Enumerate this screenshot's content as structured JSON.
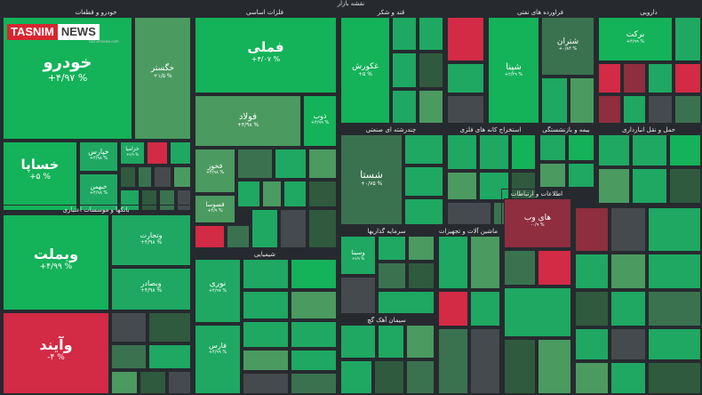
{
  "header": {
    "title": "نقشه بازار"
  },
  "logo": {
    "part1": "TASNIM",
    "part2": "NEWS",
    "sub": "tasnimnews.com"
  },
  "sectors": {
    "auto": "خودرو و قطعات",
    "banks": "بانکها و موسسات اعتباری",
    "metals": "فلزات اساسی",
    "chem": "شیمیایی",
    "sugar": "قند و شکر",
    "agri": "غذایی بجز قند وشکر",
    "multi": "چندرشته ای صنعتی",
    "invest": "سرمایه گذاریها",
    "cement": "سیمان آهک گچ",
    "refinery": "فراورده های نفتی",
    "minerals": "استخراج کانه های فلزی",
    "telecom": "اطلاعات و ارتباطات",
    "insurance": "بیمه و بازنشستگی",
    "pharma": "دارویی",
    "transport": "حمل و نقل انبارداری",
    "ceramic": "کاشی و سرامیک",
    "machinery": "ماشین آلات و تجهیزات"
  },
  "tiles": {
    "khodro": {
      "name": "خودرو",
      "change": "+۴/۹۷ %"
    },
    "khsapa": {
      "name": "خساپا",
      "change": "+۵ %"
    },
    "khgostar": {
      "name": "خگستر",
      "change": "+۱/۵ %"
    },
    "khpars": {
      "name": "خپارس",
      "change": "+۴/۹۸ %"
    },
    "khbahman": {
      "name": "خبهمن",
      "change": "+۴/۹۸ %"
    },
    "khzamia": {
      "name": "خزامیا",
      "change": "+۴/۹ %"
    },
    "vbmellat": {
      "name": "وبملت",
      "change": "+۴/۹۹ %"
    },
    "vayande": {
      "name": "وآیند",
      "change": "-۴ %"
    },
    "vtejarat": {
      "name": "وتجارت",
      "change": "+۴/۹۸ %"
    },
    "vsaderat": {
      "name": "وبصادر",
      "change": "+۴/۹۸ %"
    },
    "fameli": {
      "name": "فملی",
      "change": "+۴/۰۷ %"
    },
    "foolad": {
      "name": "فولاد",
      "change": "+۴/۹۸ %"
    },
    "zob": {
      "name": "ذوب",
      "change": "+۴/۹۹ %"
    },
    "fakhooz": {
      "name": "فخوز",
      "change": "+۴/۹۸ %"
    },
    "fesoosa": {
      "name": "فسوسا",
      "change": "+۴/۹ %"
    },
    "ghkoorosh": {
      "name": "غکورش",
      "change": "+۵ %"
    },
    "shasta": {
      "name": "شستا",
      "change": "+۰/۷۵ %"
    },
    "shepna": {
      "name": "شپنا",
      "change": "+۲/۴۹ %"
    },
    "shatran": {
      "name": "شتران",
      "change": "+۰/۸۴ %"
    },
    "barekat": {
      "name": "برکت",
      "change": "+۴/۹۹ %"
    },
    "nouri": {
      "name": "نوری",
      "change": "+۴/۹۷ %"
    },
    "hayweb": {
      "name": "های وب",
      "change": "-۰/۹ %"
    },
    "vsina": {
      "name": "وسینا",
      "change": "+۴/۹ %"
    },
    "fars": {
      "name": "فارس",
      "change": "+۴/۹۹ %"
    }
  }
}
